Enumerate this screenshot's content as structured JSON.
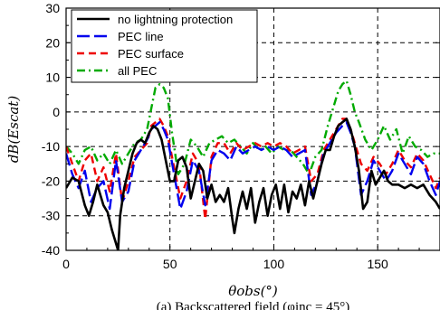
{
  "chart_data": {
    "type": "line",
    "xlabel": "θobs(°)",
    "ylabel": "dB(Escat)",
    "caption": "(a) Backscattered field (φinc = 45°)",
    "xlim": [
      0,
      180
    ],
    "ylim": [
      -40,
      30
    ],
    "xticks": [
      0,
      50,
      100,
      150
    ],
    "yticks": [
      -40,
      -30,
      -20,
      -10,
      0,
      10,
      20,
      30
    ],
    "grid": "dashed",
    "legend_position": "top-left",
    "series": [
      {
        "name": "no lightning protection",
        "color": "#000000",
        "dash": "solid",
        "x": [
          0,
          3,
          6,
          9,
          11,
          13,
          15,
          18,
          20,
          22,
          24,
          25,
          26,
          28,
          30,
          32,
          34,
          36,
          38,
          40,
          42,
          44,
          46,
          48,
          50,
          52,
          54,
          56,
          58,
          60,
          62,
          64,
          66,
          68,
          70,
          72,
          74,
          76,
          78,
          80,
          81,
          83,
          85,
          87,
          89,
          91,
          93,
          95,
          97,
          99,
          101,
          103,
          105,
          107,
          109,
          111,
          113,
          115,
          117,
          119,
          121,
          123,
          125,
          127,
          129,
          131,
          133,
          135,
          137,
          139,
          141,
          143,
          145,
          147,
          149,
          151,
          153,
          155,
          157,
          160,
          163,
          166,
          169,
          172,
          175,
          178,
          180
        ],
        "values": [
          -22,
          -19,
          -20,
          -27,
          -30,
          -26,
          -21,
          -27,
          -29,
          -34,
          -38,
          -40,
          -30,
          -22,
          -17,
          -12,
          -9,
          -8,
          -9,
          -6,
          -4,
          -5,
          -8,
          -14,
          -20,
          -20,
          -14,
          -13,
          -16,
          -25,
          -20,
          -15,
          -17,
          -25,
          -21,
          -26,
          -24,
          -26,
          -22,
          -31,
          -35,
          -28,
          -23,
          -28,
          -22,
          -32,
          -26,
          -22,
          -30,
          -24,
          -21,
          -28,
          -21,
          -29,
          -23,
          -25,
          -21,
          -27,
          -20,
          -25,
          -20,
          -15,
          -11,
          -11,
          -7,
          -4,
          -3,
          -2,
          -5,
          -10,
          -17,
          -28,
          -26,
          -17,
          -21,
          -19,
          -17,
          -20,
          -21,
          -21,
          -22,
          -21,
          -22,
          -21,
          -24,
          -26,
          -28
        ]
      },
      {
        "name": "PEC line",
        "color": "#0000ee",
        "dash": "longdash",
        "x": [
          0,
          3,
          6,
          9,
          12,
          15,
          18,
          21,
          24,
          27,
          30,
          33,
          36,
          39,
          41,
          43,
          45,
          47,
          49,
          52,
          55,
          58,
          61,
          64,
          67,
          70,
          73,
          76,
          79,
          82,
          85,
          88,
          91,
          94,
          97,
          100,
          103,
          106,
          109,
          112,
          115,
          118,
          121,
          124,
          127,
          130,
          133,
          135,
          137,
          139,
          142,
          145,
          148,
          151,
          154,
          157,
          160,
          163,
          166,
          169,
          172,
          175,
          178,
          180
        ],
        "values": [
          -12,
          -18,
          -22,
          -17,
          -26,
          -22,
          -20,
          -28,
          -14,
          -26,
          -23,
          -14,
          -11,
          -8,
          -5,
          -4,
          -3,
          -5,
          -8,
          -18,
          -28,
          -23,
          -14,
          -17,
          -27,
          -14,
          -11,
          -12,
          -14,
          -10,
          -12,
          -11,
          -10,
          -11,
          -10,
          -11,
          -10,
          -11,
          -13,
          -12,
          -11,
          -24,
          -20,
          -12,
          -9,
          -6,
          -4,
          -3,
          -6,
          -10,
          -24,
          -20,
          -14,
          -17,
          -20,
          -17,
          -12,
          -15,
          -18,
          -13,
          -15,
          -20,
          -24,
          -20
        ]
      },
      {
        "name": "PEC surface",
        "color": "#ee0000",
        "dash": "dash",
        "x": [
          0,
          3,
          6,
          9,
          12,
          15,
          18,
          21,
          24,
          27,
          30,
          33,
          36,
          39,
          41,
          43,
          45,
          47,
          49,
          52,
          55,
          58,
          61,
          64,
          67,
          70,
          73,
          76,
          79,
          82,
          85,
          88,
          91,
          94,
          97,
          100,
          103,
          106,
          109,
          112,
          115,
          118,
          121,
          124,
          127,
          130,
          133,
          135,
          137,
          139,
          142,
          145,
          148,
          151,
          154,
          157,
          160,
          163,
          166,
          169,
          172,
          175,
          178,
          180
        ],
        "values": [
          -10,
          -15,
          -20,
          -14,
          -12,
          -20,
          -16,
          -23,
          -12,
          -26,
          -20,
          -13,
          -11,
          -9,
          -4,
          -3,
          -2,
          -4,
          -7,
          -16,
          -25,
          -20,
          -12,
          -15,
          -31,
          -13,
          -9,
          -9,
          -12,
          -9,
          -11,
          -10,
          -9,
          -10,
          -9,
          -10,
          -9,
          -10,
          -12,
          -11,
          -10,
          -20,
          -18,
          -11,
          -8,
          -5,
          -2,
          -2,
          -5,
          -9,
          -15,
          -17,
          -13,
          -15,
          -18,
          -15,
          -11,
          -14,
          -16,
          -12,
          -14,
          -18,
          -22,
          -19
        ]
      },
      {
        "name": "all PEC",
        "color": "#00aa00",
        "dash": "dashdot",
        "x": [
          0,
          3,
          6,
          9,
          12,
          15,
          18,
          21,
          24,
          27,
          30,
          33,
          36,
          39,
          41,
          43,
          45,
          47,
          49,
          51,
          54,
          57,
          60,
          63,
          66,
          69,
          72,
          75,
          78,
          81,
          84,
          87,
          90,
          93,
          96,
          99,
          102,
          105,
          108,
          111,
          114,
          117,
          120,
          123,
          126,
          129,
          131,
          133,
          135,
          137,
          139,
          141,
          144,
          147,
          150,
          153,
          156,
          159,
          162,
          165,
          168,
          171,
          174,
          177,
          180
        ],
        "values": [
          -10,
          -12,
          -15,
          -11,
          -10,
          -14,
          -12,
          -15,
          -11,
          -15,
          -12,
          -9,
          -8,
          -5,
          1,
          7,
          8,
          7,
          4,
          -6,
          -18,
          -15,
          -8,
          -10,
          -13,
          -9,
          -8,
          -7,
          -9,
          -8,
          -10,
          -12,
          -9,
          -11,
          -10,
          -12,
          -10,
          -11,
          -11,
          -13,
          -15,
          -18,
          -13,
          -11,
          -4,
          2,
          6,
          8,
          9,
          5,
          0,
          -3,
          -8,
          -11,
          -8,
          -4,
          -8,
          -5,
          -12,
          -7,
          -10,
          -11,
          -13,
          -12,
          -12
        ]
      }
    ]
  }
}
